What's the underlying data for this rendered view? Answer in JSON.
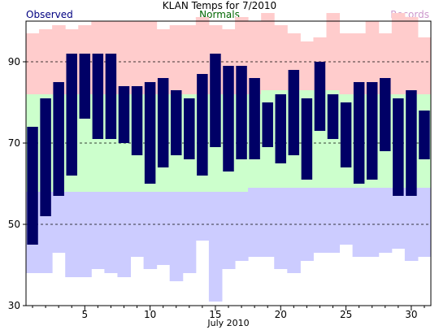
{
  "chart_data": {
    "type": "bar",
    "title": "KLAN Temps for 7/2010",
    "xlabel": "July 2010",
    "ylabel": "",
    "ylim": [
      30,
      100
    ],
    "xlim": [
      0.5,
      31.5
    ],
    "yticks": [
      30,
      50,
      70,
      90
    ],
    "xticks": [
      5,
      10,
      15,
      20,
      25,
      30
    ],
    "dashed_gridlines": [
      50,
      70,
      90
    ],
    "legend": {
      "placement": "top",
      "observed": "Observed",
      "normals": "Normals",
      "records": "Records"
    },
    "colors": {
      "observed": "#000066",
      "normals_band": "#ccffcc",
      "record_high_band": "#ffcccc",
      "record_low_band": "#ccccff",
      "legend_observed": "#000080",
      "legend_normals": "#006600",
      "legend_records": "#cc99cc"
    },
    "days": [
      1,
      2,
      3,
      4,
      5,
      6,
      7,
      8,
      9,
      10,
      11,
      12,
      13,
      14,
      15,
      16,
      17,
      18,
      19,
      20,
      21,
      22,
      23,
      24,
      25,
      26,
      27,
      28,
      29,
      30,
      31
    ],
    "observed_high": [
      74,
      81,
      85,
      92,
      92,
      92,
      92,
      84,
      84,
      85,
      86,
      83,
      81,
      87,
      92,
      89,
      89,
      86,
      80,
      82,
      88,
      81,
      90,
      82,
      80,
      85,
      85,
      86,
      81,
      83,
      78
    ],
    "observed_low": [
      45,
      52,
      57,
      62,
      76,
      71,
      71,
      70,
      67,
      60,
      64,
      67,
      66,
      62,
      69,
      63,
      66,
      66,
      69,
      65,
      67,
      61,
      73,
      71,
      64,
      60,
      61,
      68,
      57,
      57,
      66
    ],
    "normal_high": [
      82,
      82,
      82,
      82,
      82,
      82,
      82,
      82,
      82,
      82,
      82,
      82,
      82,
      82,
      82,
      82,
      82,
      82,
      83,
      83,
      83,
      83,
      83,
      83,
      82,
      82,
      82,
      82,
      82,
      82,
      82
    ],
    "normal_low": [
      58,
      58,
      58,
      58,
      58,
      58,
      58,
      58,
      58,
      58,
      58,
      58,
      58,
      58,
      58,
      58,
      58,
      59,
      59,
      59,
      59,
      59,
      59,
      59,
      59,
      59,
      59,
      59,
      59,
      59,
      59
    ],
    "record_high": [
      97,
      98,
      99,
      98,
      99,
      100,
      100,
      100,
      100,
      100,
      98,
      99,
      99,
      101,
      99,
      98,
      101,
      100,
      102,
      99,
      97,
      95,
      96,
      102,
      97,
      97,
      100,
      97,
      102,
      101,
      96
    ],
    "record_low": [
      38,
      38,
      43,
      37,
      37,
      39,
      38,
      37,
      42,
      39,
      40,
      36,
      38,
      46,
      31,
      39,
      41,
      42,
      42,
      39,
      38,
      41,
      43,
      43,
      45,
      42,
      42,
      43,
      44,
      41,
      42
    ]
  }
}
